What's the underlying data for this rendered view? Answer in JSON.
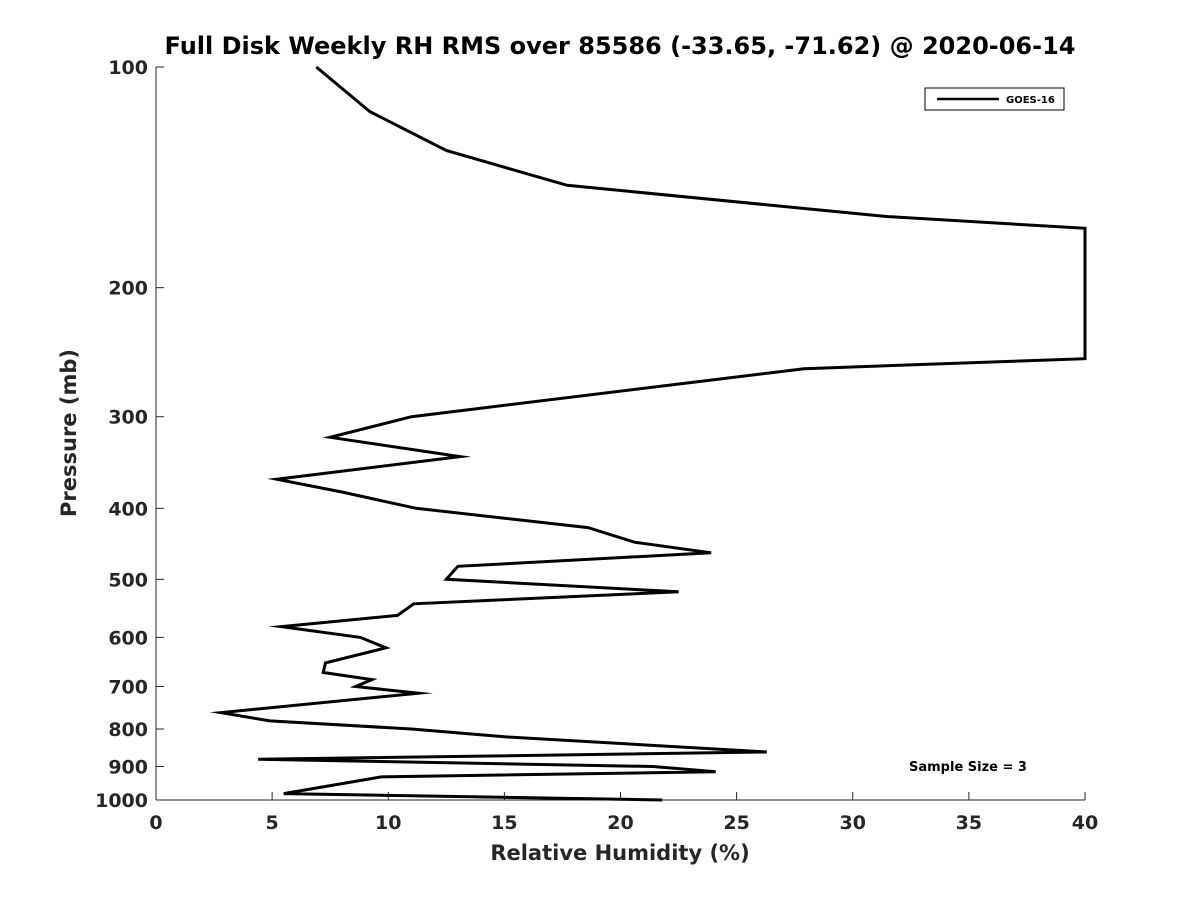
{
  "chart_data": {
    "type": "line",
    "title": "Full Disk Weekly RH RMS over 85586 (-33.65, -71.62) @ 2020-06-14",
    "xlabel": "Relative Humidity (%)",
    "ylabel": "Pressure (mb)",
    "xlim": [
      0,
      40
    ],
    "ylim": [
      100,
      1000
    ],
    "y_scale": "log",
    "y_reversed": true,
    "x_ticks": [
      0,
      5,
      10,
      15,
      20,
      25,
      30,
      35,
      40
    ],
    "y_ticks": [
      100,
      200,
      300,
      400,
      500,
      600,
      700,
      800,
      900,
      1000
    ],
    "grid": false,
    "legend_position": "top-right",
    "annotation": "Sample Size = 3",
    "series": [
      {
        "name": "GOES-16",
        "color": "#000000",
        "points": [
          [
            6.9,
            100
          ],
          [
            9.2,
            115
          ],
          [
            12.5,
            130
          ],
          [
            17.7,
            145
          ],
          [
            31.5,
            160
          ],
          [
            40,
            166
          ],
          [
            40,
            250
          ],
          [
            27.9,
            258
          ],
          [
            11.0,
            300
          ],
          [
            7.5,
            320
          ],
          [
            13.1,
            340
          ],
          [
            5.2,
            365
          ],
          [
            8.0,
            380
          ],
          [
            11.2,
            400
          ],
          [
            18.6,
            425
          ],
          [
            20.6,
            445
          ],
          [
            23.9,
            460
          ],
          [
            13.0,
            480
          ],
          [
            12.5,
            500
          ],
          [
            22.5,
            520
          ],
          [
            11.1,
            540
          ],
          [
            10.4,
            560
          ],
          [
            5.4,
            580
          ],
          [
            8.8,
            600
          ],
          [
            9.9,
            620
          ],
          [
            7.3,
            650
          ],
          [
            7.2,
            670
          ],
          [
            9.3,
            685
          ],
          [
            8.6,
            700
          ],
          [
            11.3,
            715
          ],
          [
            2.8,
            760
          ],
          [
            4.9,
            780
          ],
          [
            11.0,
            800
          ],
          [
            15.0,
            820
          ],
          [
            26.3,
            860
          ],
          [
            4.4,
            880
          ],
          [
            21.4,
            900
          ],
          [
            24.1,
            915
          ],
          [
            9.7,
            930
          ],
          [
            5.5,
            980
          ],
          [
            21.8,
            1000
          ]
        ]
      }
    ]
  }
}
